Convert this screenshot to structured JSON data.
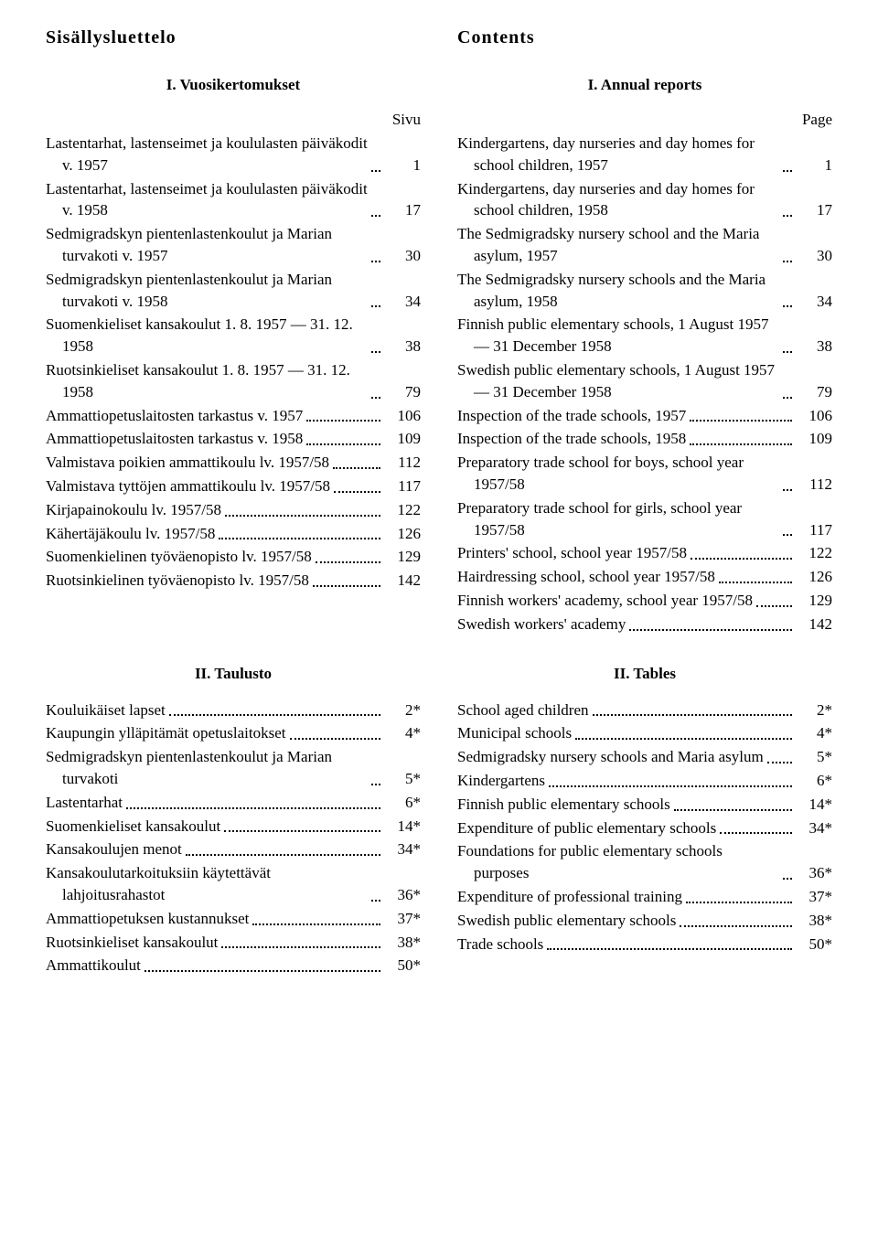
{
  "headingLeft": "Sisällysluettelo",
  "headingRight": "Contents",
  "section1": {
    "leftTitle": "I. Vuosikertomukset",
    "rightTitle": "I. Annual reports",
    "pageLabelLeft": "Sivu",
    "pageLabelRight": "Page",
    "left": [
      {
        "text": "Lastentarhat, lastenseimet ja koululasten päiväkodit v. 1957",
        "page": "1",
        "hang": true
      },
      {
        "text": "Lastentarhat, lastenseimet ja koululasten päiväkodit v. 1958",
        "page": "17",
        "hang": true
      },
      {
        "text": "Sedmigradskyn pientenlastenkoulut ja Marian turvakoti v. 1957",
        "page": "30",
        "hang": true
      },
      {
        "text": "Sedmigradskyn pientenlastenkoulut ja Marian turvakoti v. 1958",
        "page": "34",
        "hang": true
      },
      {
        "text": "Suomenkieliset kansakoulut 1. 8. 1957 — 31. 12. 1958",
        "page": "38",
        "hang": true
      },
      {
        "text": "Ruotsinkieliset kansakoulut 1. 8. 1957 — 31. 12. 1958",
        "page": "79",
        "hang": true
      },
      {
        "text": "Ammattiopetuslaitosten tarkastus v. 1957",
        "page": "106",
        "hang": true
      },
      {
        "text": "Ammattiopetuslaitosten tarkastus v. 1958",
        "page": "109",
        "hang": true
      },
      {
        "text": "Valmistava poikien ammattikoulu lv. 1957/58",
        "page": "112",
        "hang": true
      },
      {
        "text": "Valmistava tyttöjen ammattikoulu lv. 1957/58",
        "page": "117",
        "hang": true
      },
      {
        "text": "Kirjapainokoulu lv. 1957/58",
        "page": "122"
      },
      {
        "text": "Kähertäjäkoulu lv. 1957/58",
        "page": "126"
      },
      {
        "text": "Suomenkielinen työväenopisto lv. 1957/58",
        "page": "129",
        "hang": true
      },
      {
        "text": "Ruotsinkielinen työväenopisto lv. 1957/58",
        "page": "142",
        "hang": true
      }
    ],
    "right": [
      {
        "text": "Kindergartens, day nurseries and day homes for school children, 1957",
        "page": "1",
        "hang": true
      },
      {
        "text": "Kindergartens, day nurseries and day homes for school children, 1958",
        "page": "17",
        "hang": true
      },
      {
        "text": "The Sedmigradsky nursery school and the Maria asylum, 1957",
        "page": "30",
        "hang": true
      },
      {
        "text": "The Sedmigradsky nursery schools and the Maria asylum, 1958",
        "page": "34",
        "hang": true
      },
      {
        "text": "Finnish public elementary schools, 1 August 1957 — 31 December 1958",
        "page": "38",
        "hang": true
      },
      {
        "text": "Swedish public elementary schools, 1 August 1957 — 31 December 1958",
        "page": "79",
        "hang": true
      },
      {
        "text": "Inspection of the trade schools, 1957",
        "page": "106"
      },
      {
        "text": "Inspection of the trade schools, 1958",
        "page": "109"
      },
      {
        "text": "Preparatory trade school for boys, school year 1957/58",
        "page": "112",
        "hang": true
      },
      {
        "text": "Preparatory trade school for girls, school year 1957/58",
        "page": "117",
        "hang": true
      },
      {
        "text": "Printers' school, school year 1957/58",
        "page": "122"
      },
      {
        "text": "Hairdressing school, school year 1957/58",
        "page": "126"
      },
      {
        "text": "Finnish workers' academy, school year 1957/58",
        "page": "129",
        "hang": true
      },
      {
        "text": "Swedish workers' academy",
        "page": "142"
      }
    ]
  },
  "section2": {
    "leftTitle": "II. Taulusto",
    "rightTitle": "II. Tables",
    "left": [
      {
        "text": "Kouluikäiset lapset",
        "page": "2*"
      },
      {
        "text": "Kaupungin ylläpitämät opetuslaitokset",
        "page": "4*"
      },
      {
        "text": "Sedmigradskyn pientenlastenkoulut ja Marian turvakoti",
        "page": "5*",
        "hang": true
      },
      {
        "text": "Lastentarhat",
        "page": "6*"
      },
      {
        "text": "Suomenkieliset kansakoulut",
        "page": "14*"
      },
      {
        "text": "Kansakoulujen menot",
        "page": "34*"
      },
      {
        "text": "Kansakoulutarkoituksiin käytettävät lahjoitusrahastot",
        "page": "36*",
        "hang": true
      },
      {
        "text": "Ammattiopetuksen kustannukset",
        "page": "37*"
      },
      {
        "text": "Ruotsinkieliset kansakoulut",
        "page": "38*"
      },
      {
        "text": "Ammattikoulut",
        "page": "50*"
      }
    ],
    "right": [
      {
        "text": "School aged children",
        "page": "2*"
      },
      {
        "text": "Municipal schools",
        "page": "4*"
      },
      {
        "text": "Sedmigradsky nursery schools and Maria asylum",
        "page": "5*",
        "hang": true
      },
      {
        "text": "Kindergartens",
        "page": "6*"
      },
      {
        "text": "Finnish public elementary schools",
        "page": "14*"
      },
      {
        "text": "Expenditure of public elementary schools",
        "page": "34*"
      },
      {
        "text": "Foundations for public elementary schools purposes",
        "page": "36*",
        "hang": true
      },
      {
        "text": "Expenditure of professional training",
        "page": "37*"
      },
      {
        "text": "Swedish public elementary schools",
        "page": "38*"
      },
      {
        "text": "Trade schools",
        "page": "50*"
      }
    ]
  }
}
